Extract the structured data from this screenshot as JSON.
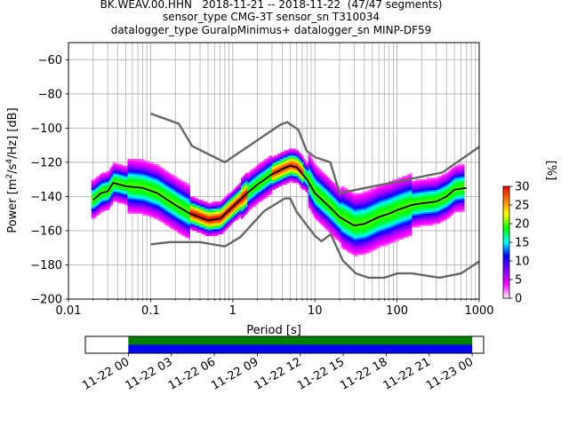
{
  "title_lines": [
    "BK.WEAV.00.HHN   2018-11-21 -- 2018-11-22  (47/47 segments)",
    "sensor_type CMG-3T sensor_sn T310034",
    "datalogger_type GuralpMinimus+ datalogger_sn MINP-DF59"
  ],
  "chart_data": [
    {
      "type": "heatmap",
      "title": "BK.WEAV.00.HHN   2018-11-21 -- 2018-11-22  (47/47 segments)",
      "xlabel": "Period [s]",
      "ylabel": "Power [m²/s⁴/Hz] [dB]",
      "ylabel_parts": {
        "pre": "Power [m",
        "sup1": "2",
        "mid": "/s",
        "sup2": "4",
        "post": "/Hz] [dB]"
      },
      "x_scale": "log",
      "xlim": [
        0.01,
        1000
      ],
      "ylim": [
        -200,
        -50
      ],
      "x_ticks": [
        0.01,
        0.1,
        1,
        10,
        100,
        1000
      ],
      "x_tick_labels": [
        "0.01",
        "0.1",
        "1",
        "10",
        "100",
        "1000"
      ],
      "y_ticks": [
        -200,
        -180,
        -160,
        -140,
        -120,
        -100,
        -80,
        -60
      ],
      "y_tick_labels": [
        "−200",
        "−180",
        "−160",
        "−140",
        "−120",
        "−100",
        "−80",
        "−60"
      ],
      "grid": true,
      "mean_curve": {
        "x": [
          0.02,
          0.025,
          0.03,
          0.035,
          0.05,
          0.08,
          0.12,
          0.2,
          0.3,
          0.5,
          0.7,
          1,
          1.5,
          2,
          3,
          4,
          5,
          6,
          8,
          10,
          15,
          20,
          30,
          40,
          60,
          80,
          100,
          150,
          200,
          300,
          400,
          500,
          700
        ],
        "y": [
          -142,
          -138,
          -137,
          -132,
          -134,
          -135,
          -138,
          -145,
          -150,
          -154,
          -153,
          -146,
          -138,
          -133,
          -127,
          -124,
          -122,
          -123,
          -130,
          -138,
          -146,
          -152,
          -157,
          -156,
          -152,
          -150,
          -148,
          -145,
          -144,
          -143,
          -140,
          -136,
          -135
        ]
      },
      "noise_model_high": {
        "x": [
          0.1,
          0.22,
          0.32,
          0.8,
          3.8,
          4.6,
          6.3,
          7.9,
          10,
          15.4,
          20,
          354.8,
          1000
        ],
        "y": [
          -91.5,
          -97.4,
          -110.5,
          -120,
          -98,
          -96.5,
          -101,
          -113.2,
          -117,
          -120,
          -138,
          -126,
          -111
        ]
      },
      "noise_model_low": {
        "x": [
          0.1,
          0.17,
          0.4,
          0.8,
          1.24,
          2.4,
          4.3,
          5,
          6,
          10,
          12,
          15.6,
          21.9,
          31.6,
          45,
          70,
          101,
          154,
          328,
          600,
          1000
        ],
        "y": [
          -168,
          -166.7,
          -166.7,
          -169.2,
          -163.7,
          -148.6,
          -141.1,
          -141.1,
          -149,
          -163,
          -166.2,
          -162.1,
          -177.5,
          -185,
          -187.5,
          -187.5,
          -185,
          -185,
          -187.5,
          -185,
          -178
        ]
      },
      "colorbar": {
        "label": "[%]",
        "ticks": [
          0,
          5,
          10,
          15,
          20,
          25,
          30
        ],
        "tick_labels": [
          "0",
          "5",
          "10",
          "15",
          "20",
          "25",
          "30"
        ],
        "range": [
          0,
          30
        ],
        "colormap": [
          "#ffffff",
          "#ff00ff",
          "#8000ff",
          "#0000ff",
          "#00ffff",
          "#00ff00",
          "#ffff00",
          "#ff8000",
          "#ff0000"
        ]
      },
      "line_colors": {
        "mean": "#000000",
        "noise_models": "#666666",
        "grid": "#b0b0b0"
      }
    },
    {
      "type": "bar",
      "title": "",
      "xlabel": "",
      "ylabel": "",
      "time_tick_labels": [
        "11-22 00",
        "11-22 03",
        "11-22 06",
        "11-22 09",
        "11-22 12",
        "11-22 15",
        "11-22 18",
        "11-22 21",
        "11-23 00"
      ],
      "xlim_hours": [
        -3,
        24.8
      ],
      "coverage": [
        {
          "name": "",
          "start_hour": 0,
          "end_hour": 24,
          "color": "#008000"
        },
        {
          "name": "",
          "start_hour": 0,
          "end_hour": 24,
          "color": "#0000ff"
        }
      ]
    }
  ]
}
